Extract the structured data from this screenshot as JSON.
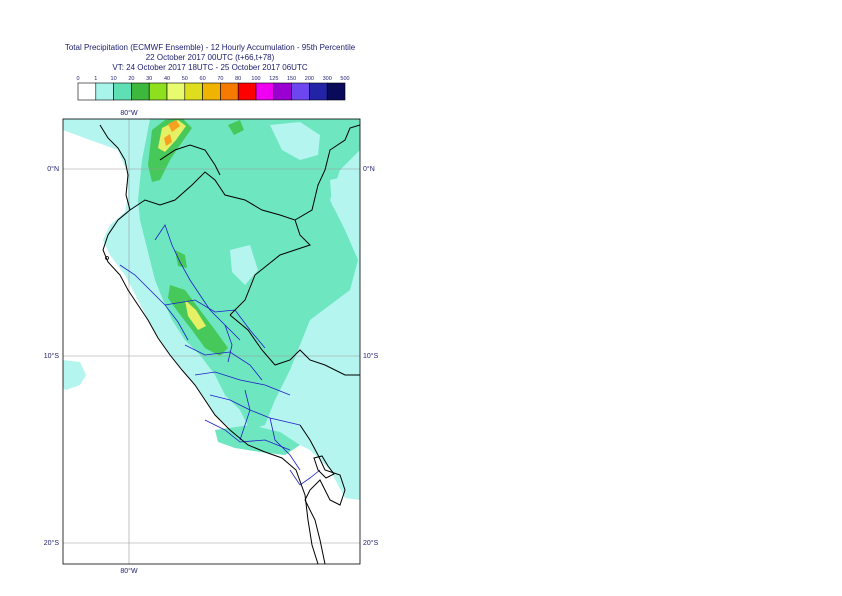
{
  "header": {
    "line1": "Total Precipitation (ECMWF Ensemble) - 12 Hourly Accumulation - 95th Percentile",
    "line2": "22 October 2017 00UTC (t+66,t+78)",
    "line3": "VT: 24 October 2017 18UTC - 25 October 2017 06UTC"
  },
  "legend": {
    "ticks": [
      "0",
      "1",
      "10",
      "20",
      "30",
      "40",
      "50",
      "60",
      "70",
      "80",
      "100",
      "125",
      "150",
      "200",
      "300",
      "500"
    ],
    "colors": [
      "#ffffff",
      "#a8f4ea",
      "#5fe0b4",
      "#3cb83c",
      "#8ee01e",
      "#e8fa6e",
      "#dede1e",
      "#f0b400",
      "#f57a00",
      "#ff0000",
      "#f000f0",
      "#9b00d2",
      "#6e46f0",
      "#2323a8",
      "#0a0a5a"
    ]
  },
  "map": {
    "lon_labels": {
      "top": "80°W",
      "bottom": "80°W"
    },
    "lat_labels": [
      "0°N",
      "10°S",
      "20°S"
    ],
    "colors": {
      "light": "#b4f5f0",
      "mid": "#6ee6c0",
      "green": "#46c85a",
      "yellow": "#e6f064",
      "orange": "#f5a01e",
      "border": "#000000",
      "region": "#1e1ec8",
      "grid": "#9a9a9a"
    }
  }
}
